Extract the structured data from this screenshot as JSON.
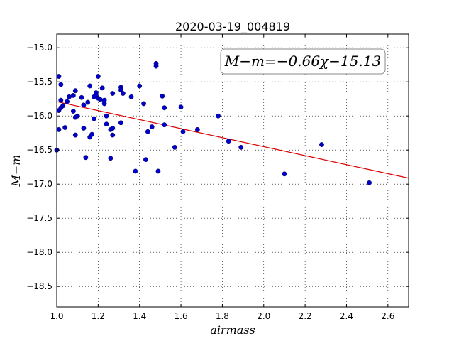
{
  "chart_data": {
    "type": "scatter",
    "title": "2020-03-19_004819",
    "xlabel": "airmass",
    "ylabel": "M−m",
    "xlim": [
      1.0,
      2.7
    ],
    "ylim": [
      -18.8,
      -14.8
    ],
    "xticks": [
      "1.0",
      "1.2",
      "1.4",
      "1.6",
      "1.8",
      "2.0",
      "2.2",
      "2.4",
      "2.6"
    ],
    "yticks": [
      "−15.0",
      "−15.5",
      "−16.0",
      "−16.5",
      "−17.0",
      "−17.5",
      "−18.0",
      "−18.5"
    ],
    "grid": true,
    "annotation": "M−m=−0.66χ−15.13",
    "fit": {
      "slope": -0.66,
      "intercept": -15.13,
      "color": "#dd0000"
    },
    "point_color": "#0000cc",
    "points": [
      [
        1.0,
        -16.5
      ],
      [
        1.01,
        -16.2
      ],
      [
        1.01,
        -15.42
      ],
      [
        1.02,
        -15.54
      ],
      [
        1.02,
        -15.77
      ],
      [
        1.01,
        -15.92
      ],
      [
        1.02,
        -15.88
      ],
      [
        1.03,
        -15.85
      ],
      [
        1.04,
        -16.17
      ],
      [
        1.05,
        -15.79
      ],
      [
        1.06,
        -15.72
      ],
      [
        1.08,
        -15.7
      ],
      [
        1.08,
        -15.93
      ],
      [
        1.09,
        -15.63
      ],
      [
        1.09,
        -16.02
      ],
      [
        1.09,
        -16.28
      ],
      [
        1.1,
        -16.0
      ],
      [
        1.12,
        -15.73
      ],
      [
        1.13,
        -15.84
      ],
      [
        1.13,
        -16.18
      ],
      [
        1.14,
        -16.61
      ],
      [
        1.15,
        -15.8
      ],
      [
        1.16,
        -15.56
      ],
      [
        1.16,
        -16.31
      ],
      [
        1.17,
        -16.27
      ],
      [
        1.18,
        -15.72
      ],
      [
        1.18,
        -16.04
      ],
      [
        1.19,
        -15.66
      ],
      [
        1.19,
        -15.7
      ],
      [
        1.2,
        -15.42
      ],
      [
        1.2,
        -15.74
      ],
      [
        1.21,
        -15.76
      ],
      [
        1.22,
        -15.59
      ],
      [
        1.23,
        -15.82
      ],
      [
        1.23,
        -15.77
      ],
      [
        1.24,
        -16.0
      ],
      [
        1.24,
        -16.12
      ],
      [
        1.26,
        -16.2
      ],
      [
        1.26,
        -16.62
      ],
      [
        1.27,
        -15.67
      ],
      [
        1.27,
        -16.28
      ],
      [
        1.27,
        -16.18
      ],
      [
        1.31,
        -15.58
      ],
      [
        1.31,
        -15.62
      ],
      [
        1.32,
        -15.67
      ],
      [
        1.31,
        -16.1
      ],
      [
        1.36,
        -15.72
      ],
      [
        1.38,
        -16.81
      ],
      [
        1.4,
        -15.56
      ],
      [
        1.42,
        -15.82
      ],
      [
        1.43,
        -16.64
      ],
      [
        1.44,
        -16.23
      ],
      [
        1.46,
        -16.16
      ],
      [
        1.48,
        -15.23
      ],
      [
        1.48,
        -15.27
      ],
      [
        1.49,
        -16.81
      ],
      [
        1.51,
        -15.71
      ],
      [
        1.52,
        -16.13
      ],
      [
        1.52,
        -15.88
      ],
      [
        1.57,
        -16.46
      ],
      [
        1.6,
        -15.87
      ],
      [
        1.61,
        -16.23
      ],
      [
        1.68,
        -16.2
      ],
      [
        1.78,
        -16.0
      ],
      [
        1.83,
        -16.37
      ],
      [
        1.89,
        -16.46
      ],
      [
        2.1,
        -16.85
      ],
      [
        2.28,
        -16.42
      ],
      [
        2.51,
        -16.98
      ]
    ]
  }
}
